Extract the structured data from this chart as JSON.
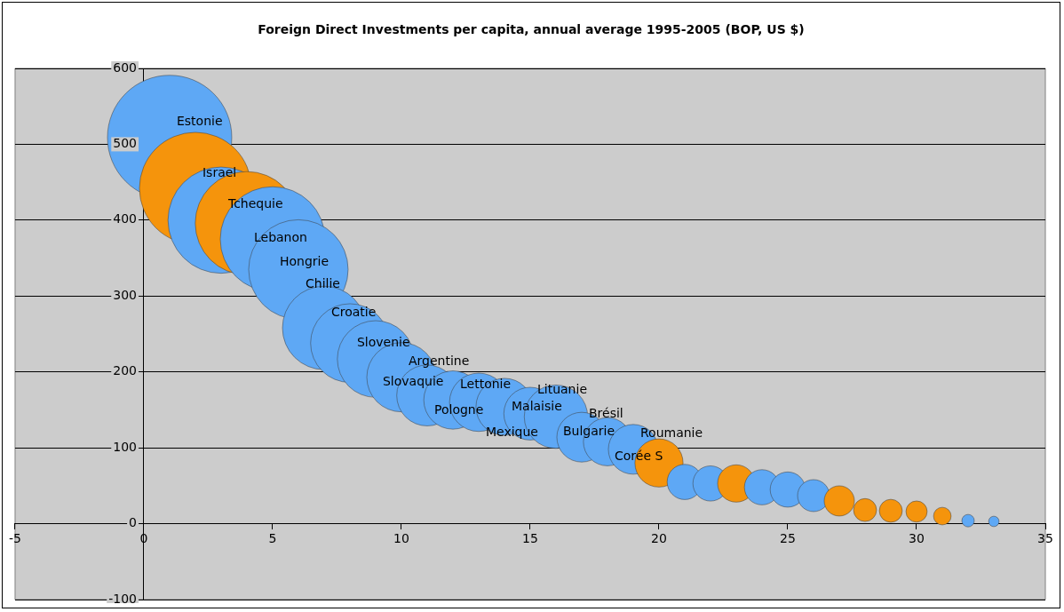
{
  "chart_data": {
    "type": "bubble",
    "title": "Foreign Direct Investments per capita, annual average 1995-2005 (BOP, US $)",
    "x": [
      1,
      2,
      3,
      4,
      5,
      6,
      7,
      8,
      9,
      10,
      11,
      12,
      13,
      14,
      15,
      16,
      17,
      18,
      19,
      20,
      21,
      22,
      23,
      24,
      25,
      26,
      27,
      28,
      29,
      30,
      31,
      32,
      33
    ],
    "values": [
      509,
      442,
      400,
      396,
      375,
      335,
      258,
      238,
      217,
      193,
      169,
      163,
      160,
      154,
      145,
      141,
      114,
      108,
      98,
      80,
      55,
      53,
      53,
      48,
      45,
      37,
      30,
      18,
      17,
      16,
      10,
      4,
      3
    ],
    "sizes": [
      1,
      0.81,
      0.73,
      0.69,
      0.71,
      0.64,
      0.45,
      0.4,
      0.38,
      0.31,
      0.24,
      0.22,
      0.22,
      0.21,
      0.18,
      0.26,
      0.16,
      0.15,
      0.16,
      0.15,
      0.08,
      0.08,
      0.09,
      0.08,
      0.08,
      0.066,
      0.059,
      0.034,
      0.034,
      0.029,
      0.02,
      0.01,
      0.007
    ],
    "colors": [
      "#5ea8f5",
      "#f5940c",
      "#5ea8f5",
      "#f5940c",
      "#5ea8f5",
      "#5ea8f5",
      "#5ea8f5",
      "#5ea8f5",
      "#5ea8f5",
      "#5ea8f5",
      "#5ea8f5",
      "#5ea8f5",
      "#5ea8f5",
      "#5ea8f5",
      "#5ea8f5",
      "#5ea8f5",
      "#5ea8f5",
      "#5ea8f5",
      "#5ea8f5",
      "#f5940c",
      "#5ea8f5",
      "#5ea8f5",
      "#f5940c",
      "#5ea8f5",
      "#5ea8f5",
      "#5ea8f5",
      "#f5940c",
      "#f5940c",
      "#f5940c",
      "#f5940c",
      "#f5940c",
      "#5ea8f5",
      "#5ea8f5"
    ],
    "xlim": [
      -5,
      35
    ],
    "xticks": [
      -5,
      0,
      5,
      10,
      15,
      20,
      25,
      30,
      35
    ],
    "ylim": [
      -100,
      600
    ],
    "yticks": [
      -100,
      0,
      100,
      200,
      300,
      400,
      500,
      600
    ],
    "grid": "y",
    "legend": false,
    "annotations": [
      {
        "text": "Estonie",
        "x": 1,
        "y": 509
      },
      {
        "text": "Israel",
        "x": 2,
        "y": 442
      },
      {
        "text": "Tchequie",
        "x": 3,
        "y": 400
      },
      {
        "text": "Lebanon",
        "x": 4,
        "y": 396
      },
      {
        "text": "Hongrie",
        "x": 5,
        "y": 375
      },
      {
        "text": "Chilie",
        "x": 6,
        "y": 335
      },
      {
        "text": "Croatie",
        "x": 7,
        "y": 258
      },
      {
        "text": "Slovenie",
        "x": 8,
        "y": 238
      },
      {
        "text": "Slovaquie",
        "x": 9,
        "y": 217
      },
      {
        "text": "Argentine",
        "x": 10,
        "y": 193
      },
      {
        "text": "Pologne",
        "x": 11,
        "y": 169
      },
      {
        "text": "Lettonie",
        "x": 12,
        "y": 163
      },
      {
        "text": "Mexique",
        "x": 13,
        "y": 160
      },
      {
        "text": "Malaisie",
        "x": 14,
        "y": 154
      },
      {
        "text": "Lituanie",
        "x": 15,
        "y": 145
      },
      {
        "text": "Bulgarie",
        "x": 16,
        "y": 141
      },
      {
        "text": "Brésil",
        "x": 17,
        "y": 114
      },
      {
        "text": "Corée S",
        "x": 18,
        "y": 108
      },
      {
        "text": "Roumanie",
        "x": 19,
        "y": 98
      }
    ]
  }
}
